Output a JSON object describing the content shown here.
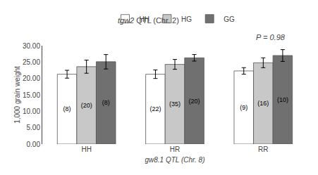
{
  "chart_data": {
    "type": "bar",
    "title": "tgw2 QTL (Chr. 2)",
    "annotations": [
      {
        "text": "P = 0.98"
      }
    ],
    "xlabel": "gw8.1 QTL (Chr. 8)",
    "ylabel": "1,000 grain weight",
    "categories": [
      "HH",
      "HR",
      "RR"
    ],
    "series": [
      {
        "name": "HH",
        "color": "#FFFFFF",
        "values": [
          21.3,
          21.3,
          22.3
        ],
        "errors": [
          1.2,
          1.3,
          1.0
        ],
        "counts": [
          "(8)",
          "(22)",
          "(9)"
        ]
      },
      {
        "name": "HG",
        "color": "#C8C8C8",
        "values": [
          23.6,
          24.3,
          24.8
        ],
        "errors": [
          2.0,
          1.5,
          1.5
        ],
        "counts": [
          "(20)",
          "(35)",
          "(16)"
        ]
      },
      {
        "name": "GG",
        "color": "#707070",
        "values": [
          25.1,
          26.3,
          27.0
        ],
        "errors": [
          2.2,
          1.0,
          1.8
        ],
        "counts": [
          "(8)",
          "(20)",
          "(10)"
        ]
      }
    ],
    "ylim": [
      0,
      30
    ],
    "yticks": [
      {
        "value": 0,
        "label": "0.00"
      },
      {
        "value": 5,
        "label": "5.00"
      },
      {
        "value": 10,
        "label": "10.00"
      },
      {
        "value": 15,
        "label": "15.00"
      },
      {
        "value": 20,
        "label": "20.00"
      },
      {
        "value": 25,
        "label": "25.00"
      },
      {
        "value": 30,
        "label": "30.00"
      }
    ],
    "legend": "top",
    "grid": false
  }
}
